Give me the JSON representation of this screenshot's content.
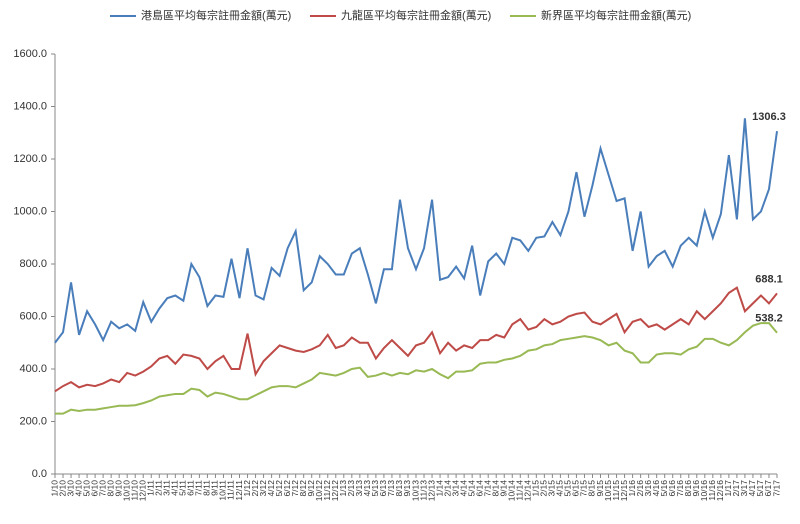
{
  "chart_data": {
    "type": "line",
    "categories": [
      "1/10",
      "2/10",
      "3/10",
      "4/10",
      "5/10",
      "6/10",
      "7/10",
      "8/10",
      "9/10",
      "10/10",
      "11/10",
      "12/10",
      "1/11",
      "2/11",
      "3/11",
      "4/11",
      "5/11",
      "6/11",
      "7/11",
      "8/11",
      "9/11",
      "10/11",
      "11/11",
      "12/11",
      "1/12",
      "2/12",
      "3/12",
      "4/12",
      "5/12",
      "6/12",
      "7/12",
      "8/12",
      "9/12",
      "10/12",
      "11/12",
      "12/12",
      "1/13",
      "2/13",
      "3/13",
      "4/13",
      "5/13",
      "6/13",
      "7/13",
      "8/13",
      "9/13",
      "10/13",
      "11/13",
      "12/13",
      "1/14",
      "2/14",
      "3/14",
      "4/14",
      "5/14",
      "6/14",
      "7/14",
      "8/14",
      "9/14",
      "10/14",
      "11/14",
      "12/14",
      "1/15",
      "2/15",
      "3/15",
      "4/15",
      "5/15",
      "6/15",
      "7/15",
      "8/15",
      "9/15",
      "10/15",
      "11/15",
      "12/15",
      "1/16",
      "2/16",
      "3/16",
      "4/16",
      "5/16",
      "6/16",
      "7/16",
      "8/16",
      "9/16",
      "10/16",
      "11/16",
      "12/16",
      "1/17",
      "2/17",
      "3/17",
      "4/17",
      "5/17",
      "6/17",
      "7/17"
    ],
    "series": [
      {
        "name": "港島區平均每宗註冊金額(萬元)",
        "color": "#4a7ebb",
        "values": [
          500,
          540,
          730,
          530,
          620,
          570,
          510,
          580,
          555,
          570,
          545,
          655,
          580,
          630,
          670,
          680,
          660,
          800,
          750,
          640,
          680,
          675,
          820,
          670,
          860,
          680,
          665,
          785,
          755,
          860,
          925,
          700,
          730,
          830,
          800,
          760,
          760,
          840,
          860,
          760,
          650,
          780,
          780,
          1045,
          860,
          780,
          860,
          1045,
          740,
          750,
          790,
          745,
          870,
          680,
          810,
          840,
          800,
          900,
          890,
          850,
          900,
          905,
          960,
          910,
          1000,
          1150,
          980,
          1100,
          1240,
          1140,
          1040,
          1050,
          850,
          1000,
          790,
          830,
          850,
          790,
          870,
          900,
          870,
          1000,
          900,
          990,
          1215,
          970,
          1355,
          970,
          1000,
          1085,
          1306.3
        ]
      },
      {
        "name": "九龍區平均每宗註冊金額(萬元)",
        "color": "#be4b48",
        "values": [
          315,
          335,
          350,
          330,
          340,
          335,
          345,
          360,
          350,
          385,
          375,
          390,
          410,
          440,
          450,
          420,
          455,
          450,
          440,
          400,
          430,
          450,
          400,
          400,
          535,
          380,
          430,
          460,
          490,
          480,
          470,
          465,
          475,
          490,
          530,
          480,
          490,
          520,
          500,
          500,
          440,
          480,
          510,
          480,
          450,
          490,
          500,
          540,
          460,
          500,
          470,
          490,
          480,
          510,
          510,
          530,
          520,
          570,
          590,
          550,
          560,
          590,
          570,
          580,
          600,
          610,
          615,
          580,
          570,
          590,
          610,
          540,
          580,
          590,
          560,
          570,
          550,
          570,
          590,
          570,
          620,
          590,
          620,
          650,
          690,
          710,
          620,
          650,
          680,
          650,
          688.1
        ]
      },
      {
        "name": "新界區平均每宗註冊金額(萬元)",
        "color": "#98b954",
        "values": [
          230,
          230,
          245,
          240,
          245,
          245,
          250,
          255,
          260,
          260,
          262,
          270,
          280,
          295,
          300,
          305,
          305,
          325,
          320,
          295,
          310,
          305,
          295,
          285,
          285,
          300,
          315,
          330,
          335,
          335,
          330,
          345,
          360,
          385,
          380,
          375,
          385,
          400,
          405,
          370,
          375,
          385,
          375,
          385,
          380,
          395,
          390,
          400,
          380,
          365,
          390,
          390,
          395,
          420,
          425,
          425,
          435,
          440,
          450,
          470,
          475,
          490,
          495,
          510,
          515,
          520,
          525,
          520,
          510,
          490,
          500,
          470,
          460,
          425,
          425,
          455,
          460,
          460,
          455,
          475,
          485,
          515,
          515,
          500,
          490,
          510,
          540,
          565,
          575,
          575,
          538.2
        ]
      }
    ],
    "ylim": [
      0,
      1600
    ],
    "yticks": [
      {
        "value": 0,
        "label": "0.0"
      },
      {
        "value": 200,
        "label": "200.0"
      },
      {
        "value": 400,
        "label": "400.0"
      },
      {
        "value": 600,
        "label": "600.0"
      },
      {
        "value": 800,
        "label": "800.0"
      },
      {
        "value": 1000,
        "label": "1000.0"
      },
      {
        "value": 1200,
        "label": "1200.0"
      },
      {
        "value": 1400,
        "label": "1400.0"
      },
      {
        "value": 1600,
        "label": "1600.0"
      }
    ],
    "grid": false,
    "legend": "top"
  }
}
